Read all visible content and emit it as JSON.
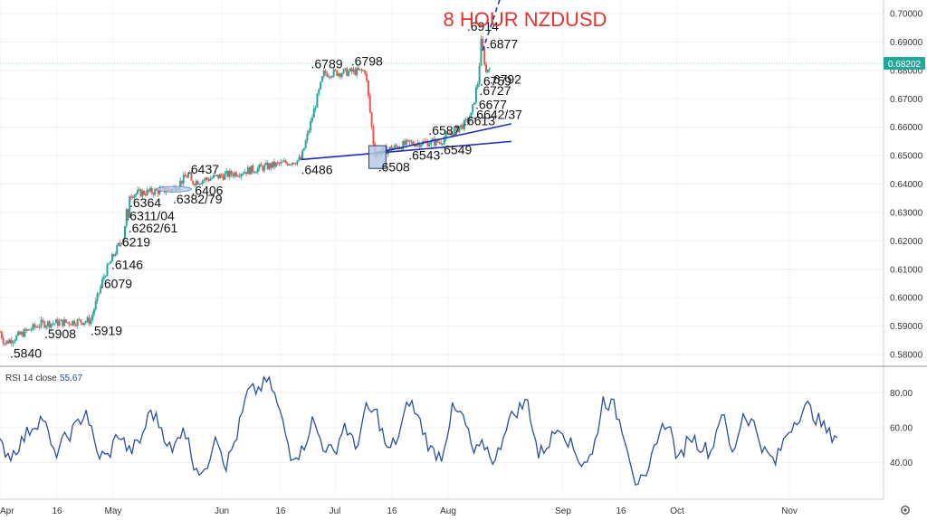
{
  "chart_data": [
    {
      "type": "candlestick",
      "title": "8  HOUR NZDUSD",
      "ylim": [
        0.575,
        0.705
      ],
      "yticks": [
        "0.58000",
        "0.59000",
        "0.60000",
        "0.61000",
        "0.62000",
        "0.63000",
        "0.64000",
        "0.65000",
        "0.66000",
        "0.67000",
        "0.68000",
        "0.69000",
        "0.70000"
      ],
      "last_price": "0.68202",
      "xticks": [
        "Apr",
        "16",
        "May",
        "Jun",
        "16",
        "Jul",
        "16",
        "Aug",
        "Sep",
        "16",
        "Oct",
        "Nov"
      ],
      "swing_points": [
        {
          "t": 0.04,
          "v": 0.584,
          "label": ".5840"
        },
        {
          "t": 0.36,
          "v": 0.5908,
          "label": ".5908"
        },
        {
          "t": 0.8,
          "v": 0.5919,
          "label": ".5919"
        },
        {
          "t": 0.92,
          "v": 0.6079,
          "label": ".6079"
        },
        {
          "t": 1.0,
          "v": 0.6146,
          "label": ".6146"
        },
        {
          "t": 1.1,
          "v": 0.6219,
          "label": ".6219"
        },
        {
          "t": 1.14,
          "v": 0.6262,
          "label": ".6262/61"
        },
        {
          "t": 1.12,
          "v": 0.6311,
          "label": ".6311/04"
        },
        {
          "t": 1.15,
          "v": 0.6364,
          "label": ".6364"
        },
        {
          "t": 1.55,
          "v": 0.6382,
          "label": ".6382/79"
        },
        {
          "t": 1.72,
          "v": 0.6406,
          "label": ".6406"
        },
        {
          "t": 1.7,
          "v": 0.6437,
          "label": ".6437"
        },
        {
          "t": 2.7,
          "v": 0.6486,
          "label": ".6486"
        },
        {
          "t": 2.9,
          "v": 0.6789,
          "label": ".6789"
        },
        {
          "t": 3.27,
          "v": 0.6798,
          "label": ".6798"
        },
        {
          "t": 3.35,
          "v": 0.6508,
          "label": ".6508"
        },
        {
          "t": 3.65,
          "v": 0.6543,
          "label": ".6543"
        },
        {
          "t": 3.93,
          "v": 0.6549,
          "label": ".6549"
        },
        {
          "t": 4.05,
          "v": 0.6587,
          "label": ".6587"
        },
        {
          "t": 4.15,
          "v": 0.6613,
          "label": ".6613"
        },
        {
          "t": 4.2,
          "v": 0.6642,
          "label": ".6642/37"
        },
        {
          "t": 4.22,
          "v": 0.6677,
          "label": ".6677"
        },
        {
          "t": 4.24,
          "v": 0.6727,
          "label": ".6727"
        },
        {
          "t": 4.26,
          "v": 0.6759,
          "label": ".6759"
        },
        {
          "t": 4.33,
          "v": 0.6792,
          "label": ".6792"
        },
        {
          "t": 4.3,
          "v": 0.6877,
          "label": ".6877"
        },
        {
          "t": 4.29,
          "v": 0.6914,
          "label": ".6914"
        }
      ],
      "trendlines": [
        {
          "from": [
            2.7,
            0.6486
          ],
          "to": [
            4.55,
            0.655
          ],
          "color": "#1f2fb5"
        },
        {
          "from": [
            3.35,
            0.6508
          ],
          "to": [
            4.55,
            0.6612
          ],
          "color": "#1f2fb5"
        },
        {
          "from": [
            4.3,
            0.687
          ],
          "to": [
            4.45,
            0.705
          ],
          "color": "#1f2fb5",
          "dashed": true
        }
      ],
      "highlight_zones": [
        {
          "from": [
            1.4,
            0.6392
          ],
          "to": [
            1.72,
            0.6372
          ],
          "shape": "ellipse"
        },
        {
          "from": [
            3.3,
            0.6535
          ],
          "to": [
            3.45,
            0.6455
          ],
          "shape": "rect"
        }
      ]
    },
    {
      "type": "line",
      "label": "RSI 14 close",
      "current_value": "55.67",
      "ylim": [
        20,
        90
      ],
      "yticks": [
        "40.00",
        "60.00",
        "80.00"
      ],
      "approx_path": [
        50,
        44,
        52,
        61,
        66,
        44,
        53,
        60,
        70,
        45,
        43,
        57,
        46,
        52,
        70,
        60,
        45,
        62,
        40,
        32,
        58,
        38,
        56,
        80,
        82,
        88,
        68,
        45,
        46,
        64,
        50,
        45,
        62,
        48,
        70,
        68,
        46,
        55,
        76,
        63,
        47,
        44,
        70,
        66,
        45,
        50,
        40,
        62,
        70,
        75,
        44,
        52,
        62,
        50,
        40,
        44,
        76,
        72,
        56,
        30,
        28,
        55,
        64,
        40,
        56,
        50,
        46,
        70,
        44,
        68,
        62,
        46,
        40,
        56,
        66,
        72,
        64,
        56
      ]
    }
  ],
  "colors": {
    "up": "#26a69a",
    "down": "#ef5350",
    "trend": "#1f2fb5",
    "rsi": "#2b4f9e",
    "title": "#e8322f",
    "price_tag": "#26a69a",
    "zone": "#b9c9e6"
  }
}
